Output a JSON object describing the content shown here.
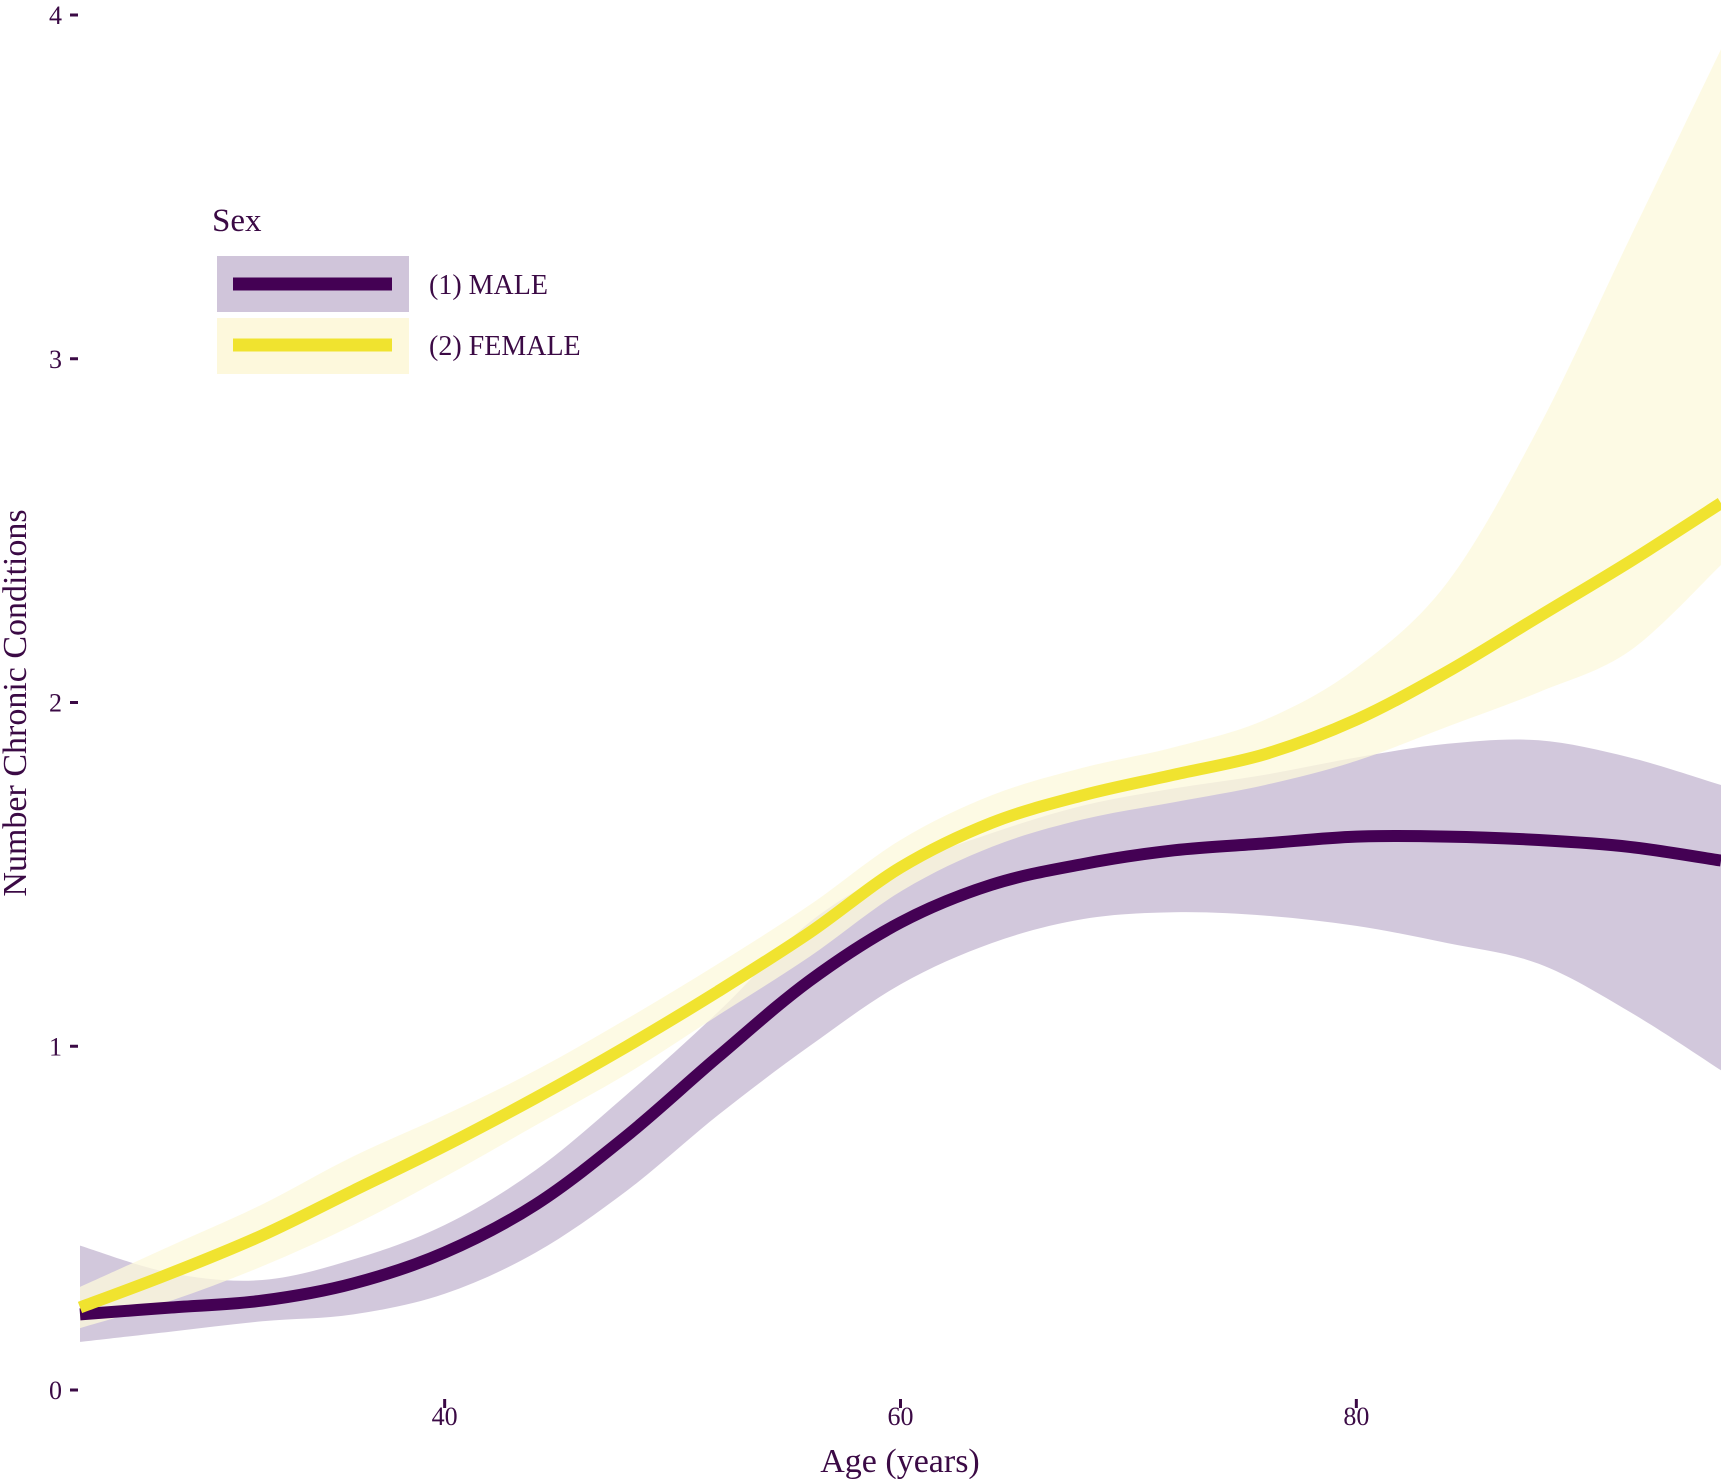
{
  "chart_data": {
    "type": "line",
    "xlabel": "Age (years)",
    "ylabel": "Number Chronic Conditions",
    "xlim": [
      24,
      96
    ],
    "ylim": [
      0,
      4
    ],
    "x_ticks": [
      40,
      60,
      80
    ],
    "y_ticks": [
      0,
      1,
      2,
      3,
      4
    ],
    "grid": false,
    "legend": {
      "title": "Sex",
      "position": "top-left"
    },
    "series": [
      {
        "name": "(1) MALE",
        "color": "#440154",
        "band_color": "#d0c5da",
        "points": [
          {
            "x": 24,
            "y": 0.22,
            "lo": 0.14,
            "hi": 0.42
          },
          {
            "x": 28,
            "y": 0.24,
            "lo": 0.17,
            "hi": 0.34
          },
          {
            "x": 32,
            "y": 0.26,
            "lo": 0.2,
            "hi": 0.32
          },
          {
            "x": 36,
            "y": 0.31,
            "lo": 0.22,
            "hi": 0.38
          },
          {
            "x": 40,
            "y": 0.4,
            "lo": 0.28,
            "hi": 0.48
          },
          {
            "x": 44,
            "y": 0.54,
            "lo": 0.4,
            "hi": 0.64
          },
          {
            "x": 48,
            "y": 0.74,
            "lo": 0.58,
            "hi": 0.86
          },
          {
            "x": 52,
            "y": 0.97,
            "lo": 0.8,
            "hi": 1.1
          },
          {
            "x": 56,
            "y": 1.19,
            "lo": 1.0,
            "hi": 1.36
          },
          {
            "x": 60,
            "y": 1.36,
            "lo": 1.18,
            "hi": 1.52
          },
          {
            "x": 64,
            "y": 1.47,
            "lo": 1.3,
            "hi": 1.62
          },
          {
            "x": 68,
            "y": 1.53,
            "lo": 1.37,
            "hi": 1.7
          },
          {
            "x": 72,
            "y": 1.57,
            "lo": 1.39,
            "hi": 1.75
          },
          {
            "x": 76,
            "y": 1.59,
            "lo": 1.38,
            "hi": 1.79
          },
          {
            "x": 80,
            "y": 1.61,
            "lo": 1.35,
            "hi": 1.84
          },
          {
            "x": 84,
            "y": 1.61,
            "lo": 1.3,
            "hi": 1.88
          },
          {
            "x": 88,
            "y": 1.6,
            "lo": 1.24,
            "hi": 1.89
          },
          {
            "x": 92,
            "y": 1.58,
            "lo": 1.1,
            "hi": 1.84
          },
          {
            "x": 96,
            "y": 1.54,
            "lo": 0.93,
            "hi": 1.76
          }
        ]
      },
      {
        "name": "(2) FEMALE",
        "color": "#f0e32f",
        "band_color": "#fdf8dc",
        "points": [
          {
            "x": 24,
            "y": 0.24,
            "lo": 0.18,
            "hi": 0.3
          },
          {
            "x": 28,
            "y": 0.34,
            "lo": 0.26,
            "hi": 0.42
          },
          {
            "x": 32,
            "y": 0.45,
            "lo": 0.36,
            "hi": 0.54
          },
          {
            "x": 36,
            "y": 0.58,
            "lo": 0.48,
            "hi": 0.68
          },
          {
            "x": 40,
            "y": 0.71,
            "lo": 0.62,
            "hi": 0.8
          },
          {
            "x": 44,
            "y": 0.85,
            "lo": 0.77,
            "hi": 0.93
          },
          {
            "x": 48,
            "y": 1.0,
            "lo": 0.92,
            "hi": 1.08
          },
          {
            "x": 52,
            "y": 1.16,
            "lo": 1.09,
            "hi": 1.24
          },
          {
            "x": 56,
            "y": 1.33,
            "lo": 1.26,
            "hi": 1.41
          },
          {
            "x": 60,
            "y": 1.52,
            "lo": 1.45,
            "hi": 1.6
          },
          {
            "x": 64,
            "y": 1.65,
            "lo": 1.58,
            "hi": 1.73
          },
          {
            "x": 68,
            "y": 1.73,
            "lo": 1.66,
            "hi": 1.81
          },
          {
            "x": 72,
            "y": 1.79,
            "lo": 1.71,
            "hi": 1.87
          },
          {
            "x": 76,
            "y": 1.85,
            "lo": 1.76,
            "hi": 1.95
          },
          {
            "x": 80,
            "y": 1.95,
            "lo": 1.83,
            "hi": 2.1
          },
          {
            "x": 84,
            "y": 2.09,
            "lo": 1.93,
            "hi": 2.35
          },
          {
            "x": 88,
            "y": 2.25,
            "lo": 2.03,
            "hi": 2.8
          },
          {
            "x": 92,
            "y": 2.41,
            "lo": 2.15,
            "hi": 3.35
          },
          {
            "x": 96,
            "y": 2.58,
            "lo": 2.4,
            "hi": 3.9
          }
        ]
      }
    ]
  }
}
